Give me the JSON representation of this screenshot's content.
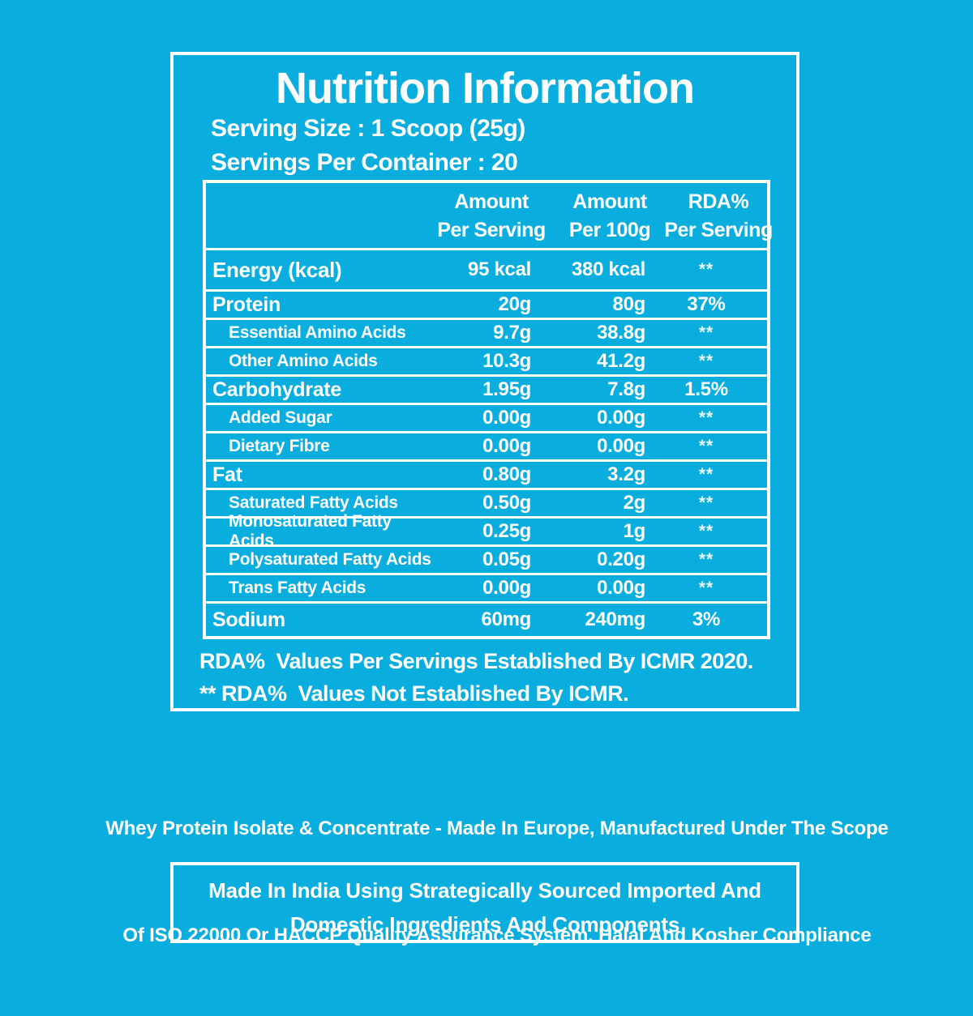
{
  "colors": {
    "background": "#0aaede",
    "text": "#ffffff",
    "border": "#ffffff"
  },
  "header": {
    "title": "Nutrition Information",
    "serving_size": "Serving Size : 1 Scoop (25g)",
    "servings_per_container": "Servings Per Container : 20"
  },
  "table": {
    "columns": [
      {
        "line1": "Amount",
        "line2": "Per Serving"
      },
      {
        "line1": "Amount",
        "line2": "Per 100g"
      },
      {
        "line1": "RDA%",
        "line2": "Per Serving"
      }
    ],
    "rows": [
      {
        "label": "Energy (kcal)",
        "indent": false,
        "per_serving": "95 kcal",
        "per_100g": "380 kcal",
        "rda": "**"
      },
      {
        "label": "Protein",
        "indent": false,
        "per_serving": "20g",
        "per_100g": "80g",
        "rda": "37%"
      },
      {
        "label": "Essential Amino Acids",
        "indent": true,
        "per_serving": "9.7g",
        "per_100g": "38.8g",
        "rda": "**"
      },
      {
        "label": "Other Amino Acids",
        "indent": true,
        "per_serving": "10.3g",
        "per_100g": "41.2g",
        "rda": "**"
      },
      {
        "label": "Carbohydrate",
        "indent": false,
        "per_serving": "1.95g",
        "per_100g": "7.8g",
        "rda": "1.5%"
      },
      {
        "label": "Added Sugar",
        "indent": true,
        "per_serving": "0.00g",
        "per_100g": "0.00g",
        "rda": "**"
      },
      {
        "label": "Dietary Fibre",
        "indent": true,
        "per_serving": "0.00g",
        "per_100g": "0.00g",
        "rda": "**"
      },
      {
        "label": "Fat",
        "indent": false,
        "per_serving": "0.80g",
        "per_100g": "3.2g",
        "rda": "**"
      },
      {
        "label": "Saturated Fatty Acids",
        "indent": true,
        "per_serving": "0.50g",
        "per_100g": "2g",
        "rda": "**"
      },
      {
        "label": "Monosaturated Fatty Acids",
        "indent": true,
        "per_serving": "0.25g",
        "per_100g": "1g",
        "rda": "**"
      },
      {
        "label": "Polysaturated Fatty Acids",
        "indent": true,
        "per_serving": "0.05g",
        "per_100g": "0.20g",
        "rda": "**"
      },
      {
        "label": "Trans Fatty Acids",
        "indent": true,
        "per_serving": "0.00g",
        "per_100g": "0.00g",
        "rda": "**"
      },
      {
        "label": "Sodium",
        "indent": false,
        "per_serving": "60mg",
        "per_100g": "240mg",
        "rda": "3%"
      }
    ]
  },
  "notes": {
    "note1": "RDA%  Values Per Servings Established By ICMR 2020.",
    "note2": "** RDA%  Values Not Established By ICMR."
  },
  "description": {
    "line1": "Whey Protein Isolate & Concentrate - Made In Europe, Manufactured Under The Scope",
    "line2": "Of ISO 22000 Or HACCP Quality Assurance System. Halal And Kosher Compliance"
  },
  "made_in_box": {
    "line1": "Made In India Using Strategically Sourced Imported And",
    "line2": "Domestic Ingredients And Components"
  }
}
